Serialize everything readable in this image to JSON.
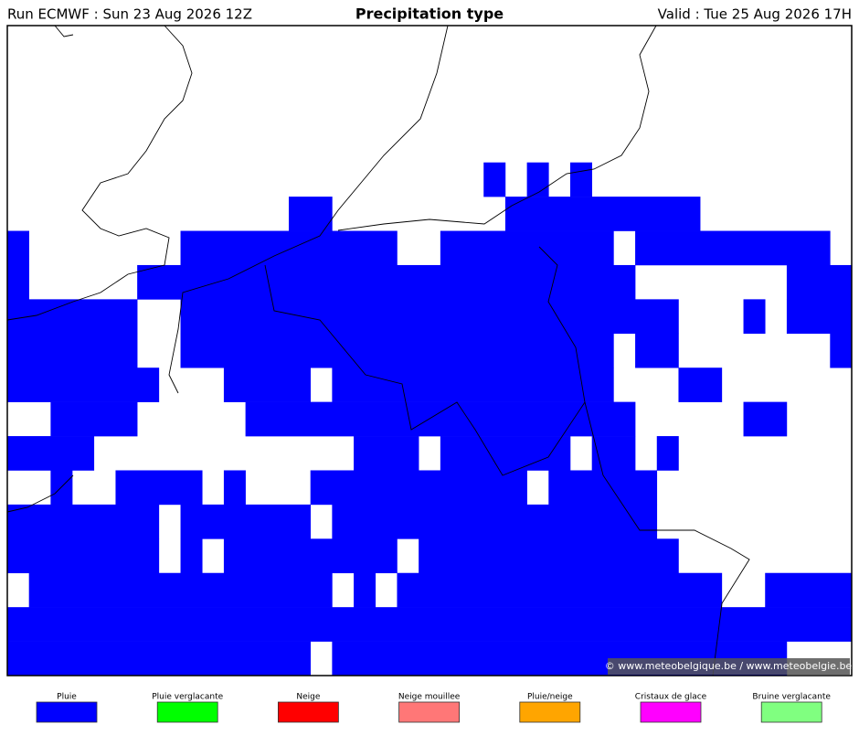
{
  "header": {
    "left": "Run ECMWF : Sun 23 Aug 2026 12Z",
    "title": "Precipitation type",
    "right": "Valid : Tue 25 Aug 2026 17H"
  },
  "credit": "© www.meteobelgique.be / www.meteobelgie.be",
  "legend": {
    "items": [
      {
        "label": "Pluie",
        "color": "#0000ff"
      },
      {
        "label": "Pluie verglacante",
        "color": "#00ff00"
      },
      {
        "label": "Neige",
        "color": "#ff0000"
      },
      {
        "label": "Neige mouillee",
        "color": "#ff7777"
      },
      {
        "label": "Pluie/neige",
        "color": "#ffa500"
      },
      {
        "label": "Cristaux de glace",
        "color": "#ff00ff"
      },
      {
        "label": "Bruine verglacante",
        "color": "#80ff80"
      }
    ]
  }
}
